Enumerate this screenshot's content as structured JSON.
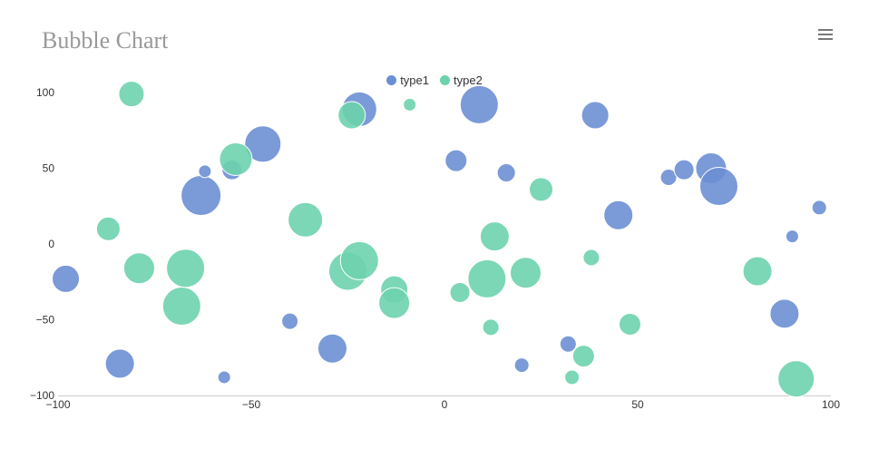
{
  "header": {
    "title": "Bubble Chart",
    "menu_icon": "hamburger-menu-icon"
  },
  "chart_data": {
    "type": "scatter",
    "title": "Bubble Chart",
    "xlim": [
      -100,
      100
    ],
    "ylim": [
      -100,
      100
    ],
    "x_ticks": [
      "−100",
      "−50",
      "0",
      "50",
      "100"
    ],
    "x_tick_values": [
      -100,
      -50,
      0,
      50,
      100
    ],
    "y_ticks": [
      "100",
      "50",
      "0",
      "−50",
      "−100"
    ],
    "y_tick_values": [
      100,
      50,
      0,
      -50,
      -100
    ],
    "legend_position": "top-center",
    "series": [
      {
        "name": "type1",
        "color": "#6b8fd4",
        "points": [
          {
            "x": -98,
            "y": -23,
            "size": 15
          },
          {
            "x": -84,
            "y": -79,
            "size": 16
          },
          {
            "x": -63,
            "y": 32,
            "size": 22
          },
          {
            "x": -62,
            "y": 48,
            "size": 7
          },
          {
            "x": -55,
            "y": 49,
            "size": 11
          },
          {
            "x": -47,
            "y": 66,
            "size": 20
          },
          {
            "x": -57,
            "y": -88,
            "size": 7
          },
          {
            "x": -40,
            "y": -51,
            "size": 9
          },
          {
            "x": -29,
            "y": -69,
            "size": 16
          },
          {
            "x": -22,
            "y": 89,
            "size": 19
          },
          {
            "x": 3,
            "y": 55,
            "size": 12
          },
          {
            "x": 9,
            "y": 92,
            "size": 21
          },
          {
            "x": 16,
            "y": 47,
            "size": 10
          },
          {
            "x": 20,
            "y": -80,
            "size": 8
          },
          {
            "x": 32,
            "y": -66,
            "size": 9
          },
          {
            "x": 39,
            "y": 85,
            "size": 15
          },
          {
            "x": 45,
            "y": 19,
            "size": 16
          },
          {
            "x": 58,
            "y": 44,
            "size": 9
          },
          {
            "x": 62,
            "y": 49,
            "size": 11
          },
          {
            "x": 69,
            "y": 50,
            "size": 17
          },
          {
            "x": 71,
            "y": 38,
            "size": 21
          },
          {
            "x": 88,
            "y": -46,
            "size": 16
          },
          {
            "x": 90,
            "y": 5,
            "size": 7
          },
          {
            "x": 97,
            "y": 24,
            "size": 8
          }
        ]
      },
      {
        "name": "type2",
        "color": "#6dd3ad",
        "points": [
          {
            "x": -81,
            "y": 99,
            "size": 14
          },
          {
            "x": -87,
            "y": 10,
            "size": 13
          },
          {
            "x": -79,
            "y": -16,
            "size": 17
          },
          {
            "x": -67,
            "y": -16,
            "size": 21
          },
          {
            "x": -68,
            "y": -41,
            "size": 21
          },
          {
            "x": -54,
            "y": 56,
            "size": 18
          },
          {
            "x": -36,
            "y": 16,
            "size": 19
          },
          {
            "x": -24,
            "y": 85,
            "size": 15
          },
          {
            "x": -25,
            "y": -18,
            "size": 21
          },
          {
            "x": -22,
            "y": -11,
            "size": 21
          },
          {
            "x": -13,
            "y": -30,
            "size": 15
          },
          {
            "x": -13,
            "y": -39,
            "size": 17
          },
          {
            "x": -9,
            "y": 92,
            "size": 7
          },
          {
            "x": 4,
            "y": -32,
            "size": 11
          },
          {
            "x": 11,
            "y": -23,
            "size": 21
          },
          {
            "x": 13,
            "y": 5,
            "size": 16
          },
          {
            "x": 12,
            "y": -55,
            "size": 9
          },
          {
            "x": 21,
            "y": -19,
            "size": 17
          },
          {
            "x": 25,
            "y": 36,
            "size": 13
          },
          {
            "x": 33,
            "y": -88,
            "size": 8
          },
          {
            "x": 36,
            "y": -74,
            "size": 12
          },
          {
            "x": 38,
            "y": -9,
            "size": 9
          },
          {
            "x": 48,
            "y": -53,
            "size": 12
          },
          {
            "x": 81,
            "y": -18,
            "size": 16
          },
          {
            "x": 91,
            "y": -89,
            "size": 20
          }
        ]
      }
    ]
  }
}
